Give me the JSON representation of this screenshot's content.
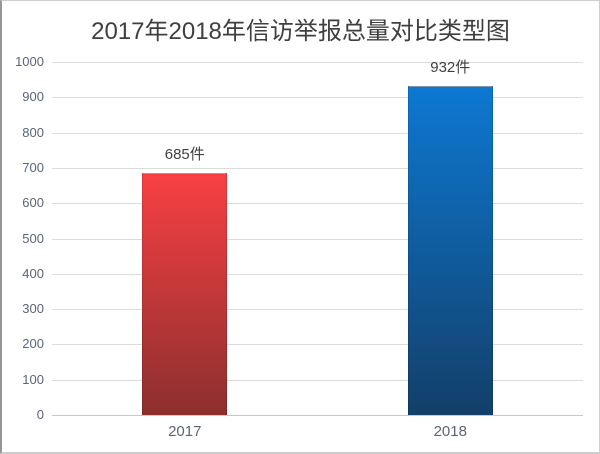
{
  "chart_data": {
    "type": "bar",
    "title": "2017年2018年信访举报总量对比类型图",
    "categories": [
      "2017",
      "2018"
    ],
    "values": [
      685,
      932
    ],
    "value_labels": [
      "685件",
      "932件"
    ],
    "ylim": [
      0,
      1000
    ],
    "ytick_step": 100,
    "yticks": [
      "0",
      "100",
      "200",
      "300",
      "400",
      "500",
      "600",
      "700",
      "800",
      "900",
      "1000"
    ],
    "grid": true,
    "legend_position": "none",
    "xlabel": "",
    "ylabel": "",
    "bar_gradients": [
      {
        "top": "#f84043",
        "bottom": "#8c2f2e"
      },
      {
        "top": "#0d78d2",
        "bottom": "#133f69"
      }
    ],
    "colors": {
      "title_text": "#3f3f3f",
      "axis_tick_text": "#5a6577",
      "data_label_text": "#404040",
      "gridline": "#dcdcdc",
      "axis_line": "#c9c9c9",
      "background": "#ffffff"
    }
  }
}
